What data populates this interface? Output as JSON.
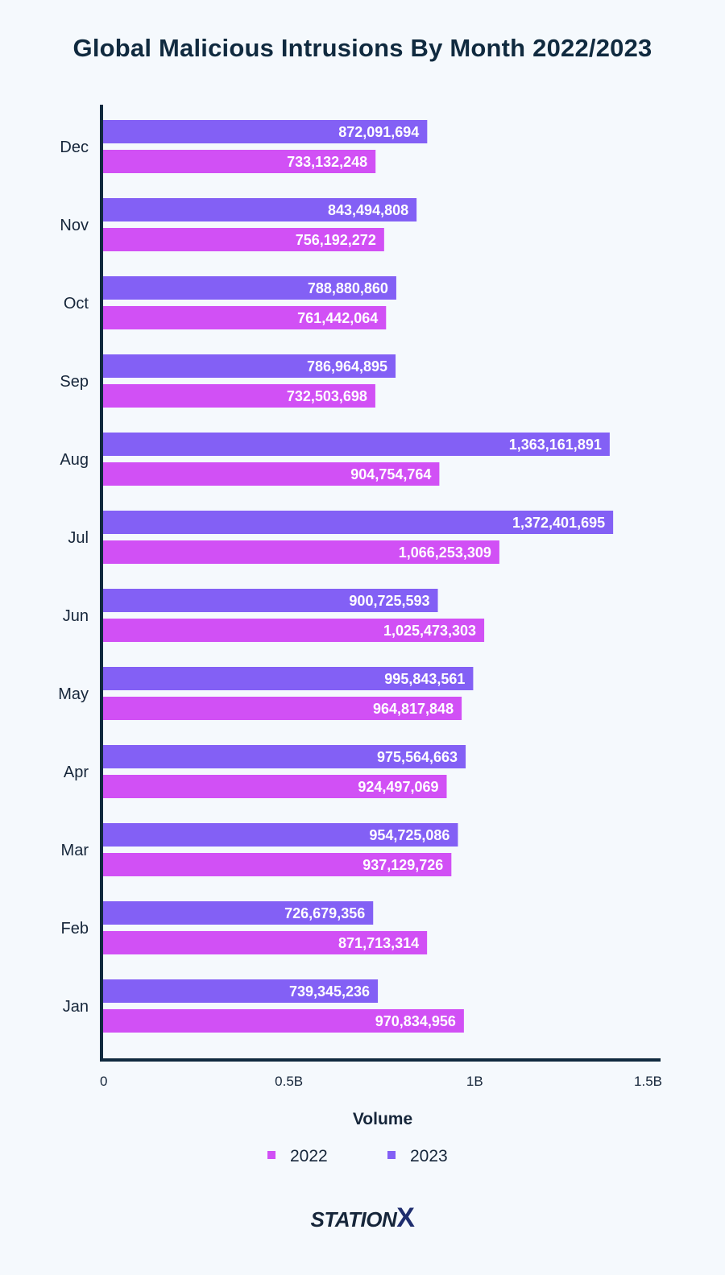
{
  "chart_data": {
    "type": "bar",
    "orientation": "horizontal",
    "title": "Global Malicious Intrusions By Month 2022/2023",
    "xlabel": "Volume",
    "ylabel": "",
    "xlim": [
      0,
      1500000000
    ],
    "x_ticks": [
      {
        "value": 0,
        "label": "0"
      },
      {
        "value": 500000000,
        "label": "0.5B"
      },
      {
        "value": 1000000000,
        "label": "1B"
      },
      {
        "value": 1500000000,
        "label": "1.5B"
      }
    ],
    "categories": [
      "Dec",
      "Nov",
      "Oct",
      "Sep",
      "Aug",
      "Jul",
      "Jun",
      "May",
      "Apr",
      "Mar",
      "Feb",
      "Jan"
    ],
    "series": [
      {
        "name": "2023",
        "color": "#8360f5",
        "values": [
          872091694,
          843494808,
          788880860,
          786964895,
          1363161891,
          1372401695,
          900725593,
          995843561,
          975564663,
          954725086,
          726679356,
          739345236
        ],
        "labels": [
          "872,091,694",
          "843,494,808",
          "788,880,860",
          "786,964,895",
          "1,363,161,891",
          "1,372,401,695",
          "900,725,593",
          "995,843,561",
          "975,564,663",
          "954,725,086",
          "726,679,356",
          "739,345,236"
        ]
      },
      {
        "name": "2022",
        "color": "#d150f5",
        "values": [
          733132248,
          756192272,
          761442064,
          732503698,
          904754764,
          1066253309,
          1025473303,
          964817848,
          924497069,
          937129726,
          871713314,
          970834956
        ],
        "labels": [
          "733,132,248",
          "756,192,272",
          "761,442,064",
          "732,503,698",
          "904,754,764",
          "1,066,253,309",
          "1,025,473,303",
          "964,817,848",
          "924,497,069",
          "937,129,726",
          "871,713,314",
          "970,834,956"
        ]
      }
    ],
    "legend": {
      "placement": "bottom",
      "items": [
        {
          "name": "2022",
          "color": "#d150f5"
        },
        {
          "name": "2023",
          "color": "#8360f5"
        }
      ]
    },
    "grid": false
  },
  "brand": {
    "logo_main": "STATION",
    "logo_x": "X"
  }
}
